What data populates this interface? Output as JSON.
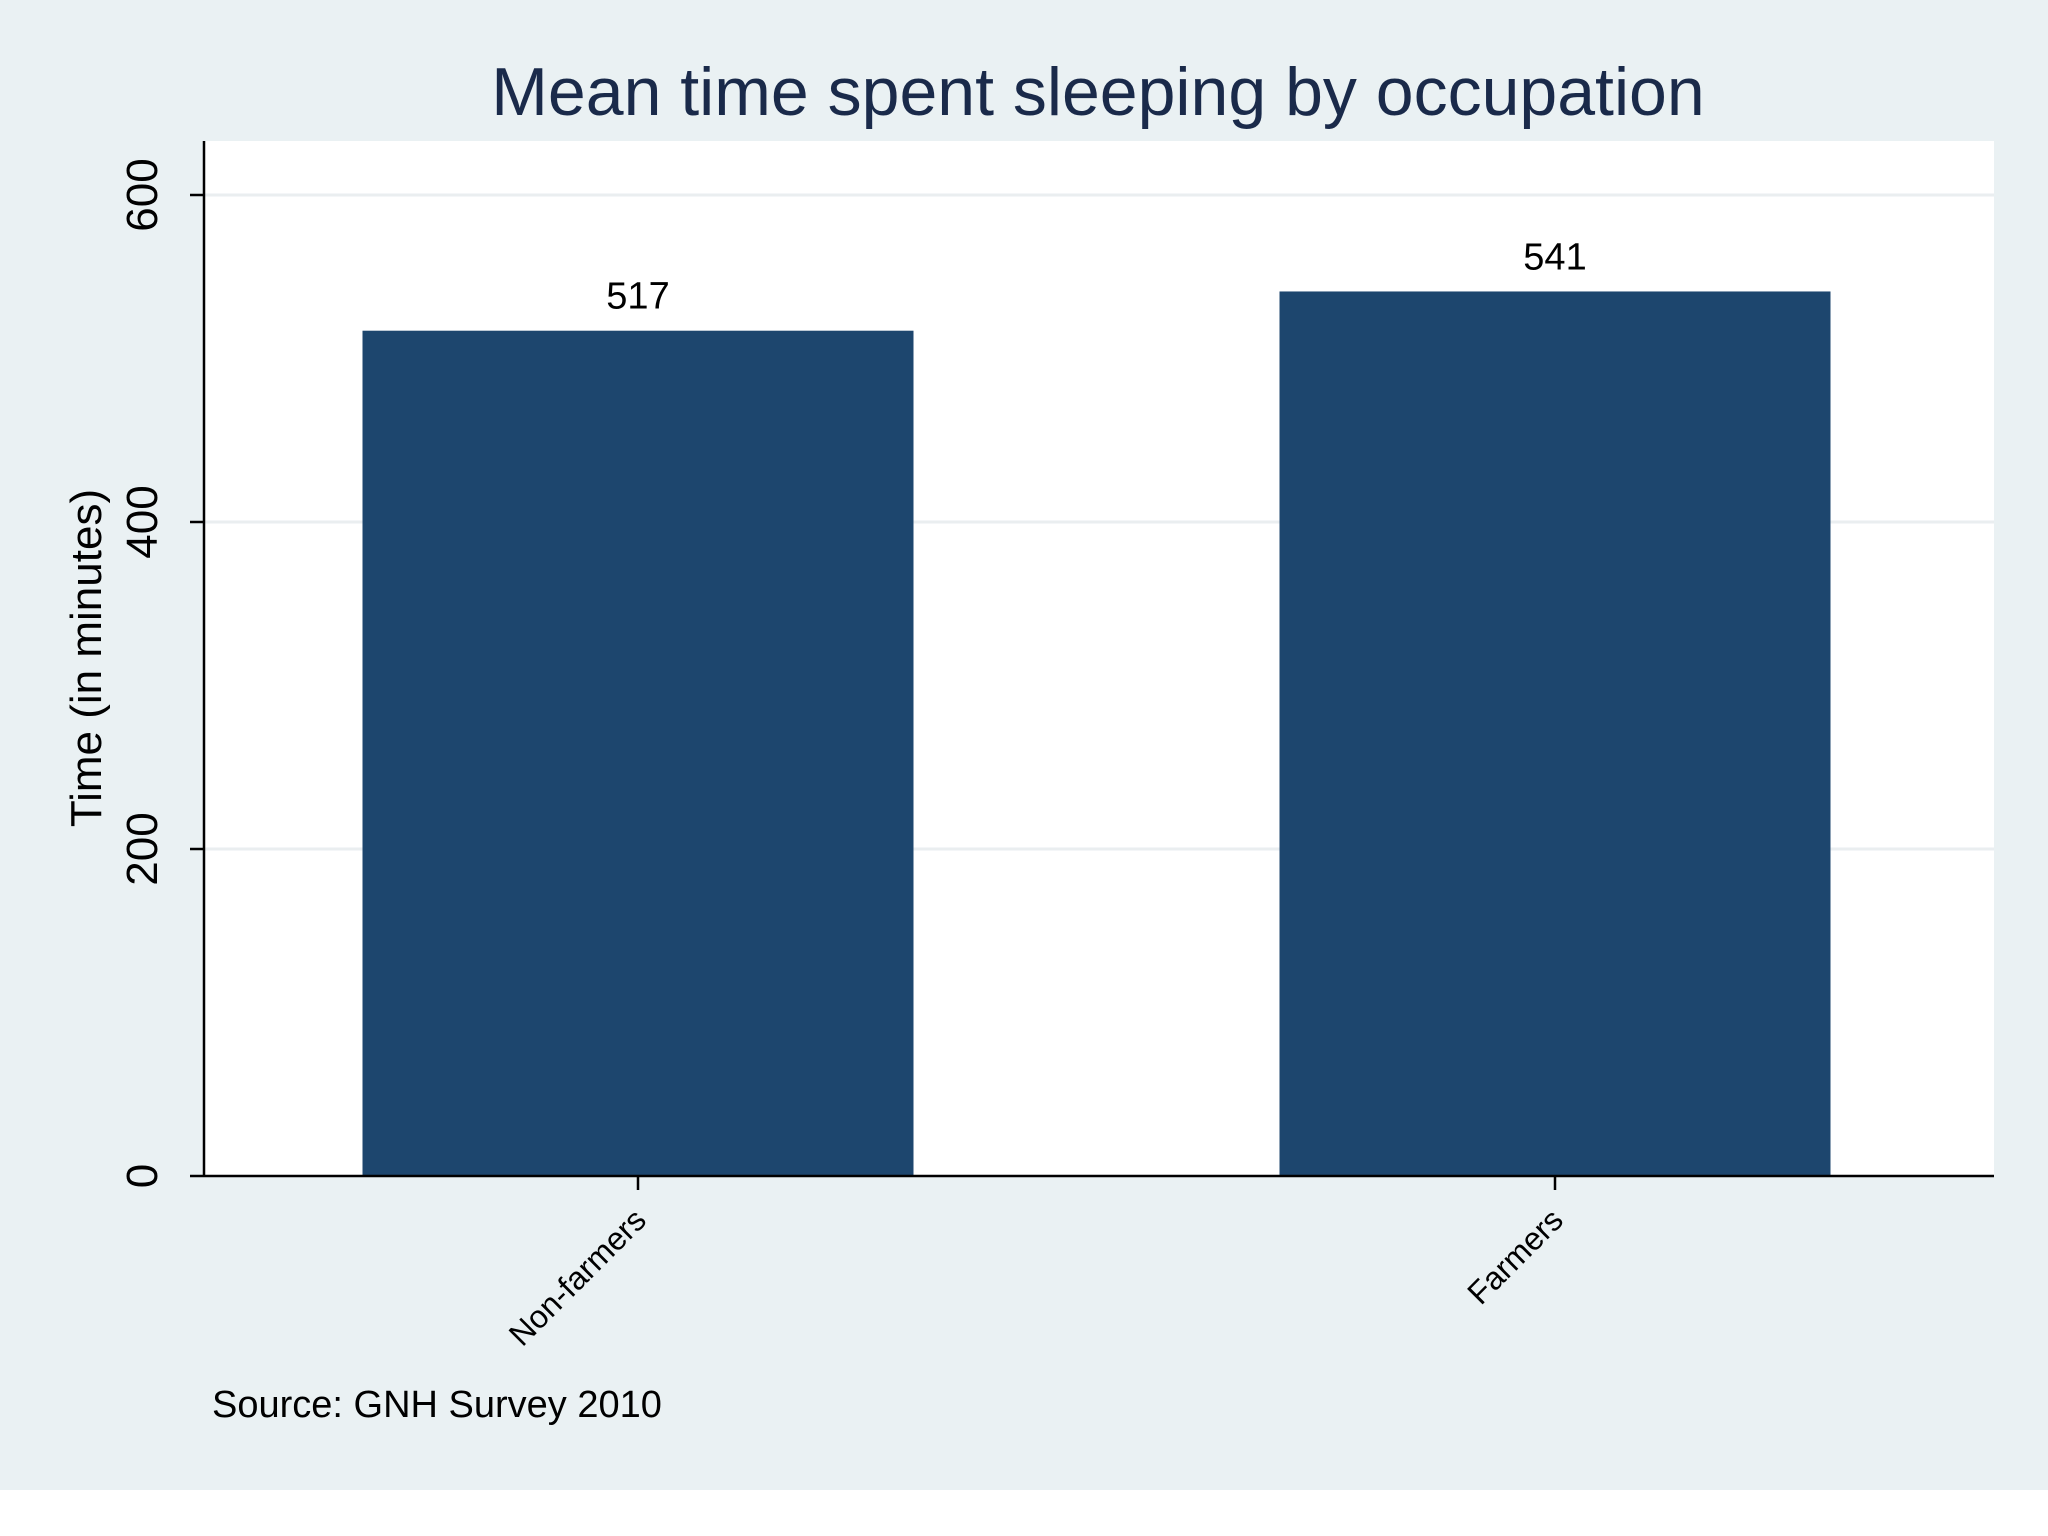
{
  "chart_data": {
    "type": "bar",
    "title": "Mean time spent sleeping by occupation",
    "xlabel": "",
    "ylabel": "Time (in minutes)",
    "categories": [
      "Non-farmers",
      "Farmers"
    ],
    "values": [
      517,
      541
    ],
    "data_labels": [
      "517",
      "541"
    ],
    "ylim": [
      0,
      630
    ],
    "yticks": [
      0,
      200,
      400,
      600
    ],
    "ytick_labels": [
      "0",
      "200",
      "400",
      "600"
    ],
    "grid": true,
    "legend": "none",
    "note": "Source: GNH Survey 2010",
    "colors": {
      "bar": "#1d466e",
      "outer_background": "#eaf1f3",
      "plot_background": "#ffffff",
      "grid": "#eaeef0",
      "axis": "#000000",
      "title": "#1a2a4a"
    }
  }
}
